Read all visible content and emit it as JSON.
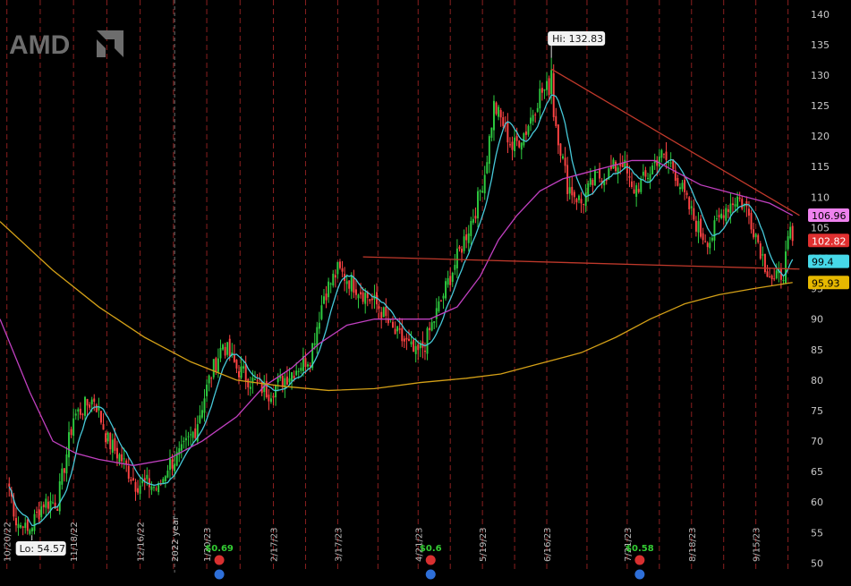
{
  "ticker": "AMD",
  "colors": {
    "background": "#000000",
    "grid_vertical": "#8a1f1f",
    "up_candle": "#2ecc40",
    "down_candle": "#ff4444",
    "ma_short": "#46c8d8",
    "ma_mid": "#c040c0",
    "ma_long": "#d4a017",
    "trendline": "#c0392b",
    "dividend": "#33cc33",
    "event_icon": "#d83030",
    "earnings_icon": "#2e6fd8"
  },
  "annotations": {
    "hi_label": "Hi: 132.83",
    "lo_label": "Lo: 54.57"
  },
  "price_badges": [
    {
      "value": "106.96",
      "bg": "#ee82ee",
      "fg": "#000000",
      "y": 106.96
    },
    {
      "value": "102.82",
      "bg": "#e03030",
      "fg": "#ffffff",
      "y": 102.82
    },
    {
      "value": "99.4",
      "bg": "#46d8e8",
      "fg": "#000000",
      "y": 99.4
    },
    {
      "value": "95.93",
      "bg": "#e6b800",
      "fg": "#000000",
      "y": 95.93
    }
  ],
  "events": [
    {
      "label": "$0.69",
      "date_index": 4
    },
    {
      "label": "$0.6",
      "date_index": 7
    },
    {
      "label": "$0.58",
      "date_index": 10
    }
  ],
  "chart_data": {
    "type": "candlestick",
    "title": "AMD",
    "ylim": [
      48,
      141
    ],
    "y_ticks": [
      50,
      55,
      60,
      65,
      70,
      75,
      80,
      85,
      90,
      95,
      100,
      105,
      110,
      115,
      120,
      125,
      130,
      135,
      140
    ],
    "y_tick_labels": [
      "50",
      "55",
      "60",
      "65",
      "70",
      "75",
      "80",
      "85",
      "90",
      "95",
      "100",
      "105",
      "110",
      "115",
      "120",
      "125",
      "130",
      "135",
      "140"
    ],
    "x_labels": [
      "10/20/22",
      "11/18/22",
      "12/16/22",
      "2022 year",
      "1/20/23",
      "2/17/23",
      "3/17/23",
      "4/21/23",
      "5/19/23",
      "6/16/23",
      "7/21/23",
      "8/18/23",
      "9/15/23"
    ],
    "x_label_positions": [
      0.0,
      29.0,
      58.0,
      73.0,
      87.0,
      116.0,
      144.0,
      179.0,
      207.0,
      235.0,
      270.0,
      298.0,
      326.0
    ],
    "x_range": [
      -3,
      346
    ],
    "hi": {
      "value": 132.83,
      "x": 237
    },
    "lo": {
      "value": 54.57,
      "x": 7
    },
    "last_close": 102.82,
    "moving_averages": [
      {
        "name": "short",
        "last": 99.4
      },
      {
        "name": "mid",
        "last": 106.96
      },
      {
        "name": "long",
        "last": 95.93
      }
    ],
    "trendlines": [
      {
        "x1": 155,
        "y1": 100.2,
        "x2": 345,
        "y2": 98.2
      },
      {
        "x1": 237,
        "y1": 131.0,
        "x2": 345,
        "y2": 107.0
      }
    ],
    "anchors": [
      [
        -3,
        70
      ],
      [
        4,
        57
      ],
      [
        9,
        55
      ],
      [
        16,
        60
      ],
      [
        22,
        60
      ],
      [
        29,
        74
      ],
      [
        38,
        77
      ],
      [
        44,
        70
      ],
      [
        50,
        67
      ],
      [
        56,
        63
      ],
      [
        62,
        63
      ],
      [
        66,
        62
      ],
      [
        70,
        66
      ],
      [
        76,
        68
      ],
      [
        82,
        72
      ],
      [
        88,
        80
      ],
      [
        94,
        86
      ],
      [
        100,
        82
      ],
      [
        106,
        80
      ],
      [
        114,
        78
      ],
      [
        120,
        80
      ],
      [
        126,
        82
      ],
      [
        132,
        84
      ],
      [
        138,
        94
      ],
      [
        144,
        98
      ],
      [
        150,
        96
      ],
      [
        156,
        94
      ],
      [
        162,
        92
      ],
      [
        168,
        88
      ],
      [
        174,
        86
      ],
      [
        178,
        84
      ],
      [
        182,
        86
      ],
      [
        186,
        90
      ],
      [
        192,
        96
      ],
      [
        196,
        100
      ],
      [
        200,
        104
      ],
      [
        204,
        108
      ],
      [
        208,
        114
      ],
      [
        212,
        125
      ],
      [
        216,
        122
      ],
      [
        220,
        118
      ],
      [
        226,
        121
      ],
      [
        232,
        127
      ],
      [
        236,
        128
      ],
      [
        240,
        120
      ],
      [
        244,
        112
      ],
      [
        250,
        109
      ],
      [
        256,
        113
      ],
      [
        262,
        114
      ],
      [
        268,
        116
      ],
      [
        272,
        111
      ],
      [
        278,
        113
      ],
      [
        284,
        117
      ],
      [
        290,
        115
      ],
      [
        296,
        109
      ],
      [
        302,
        104
      ],
      [
        306,
        103
      ],
      [
        312,
        108
      ],
      [
        318,
        110
      ],
      [
        322,
        108
      ],
      [
        326,
        104
      ],
      [
        330,
        99
      ],
      [
        334,
        96
      ],
      [
        338,
        98
      ],
      [
        341,
        104
      ]
    ]
  }
}
